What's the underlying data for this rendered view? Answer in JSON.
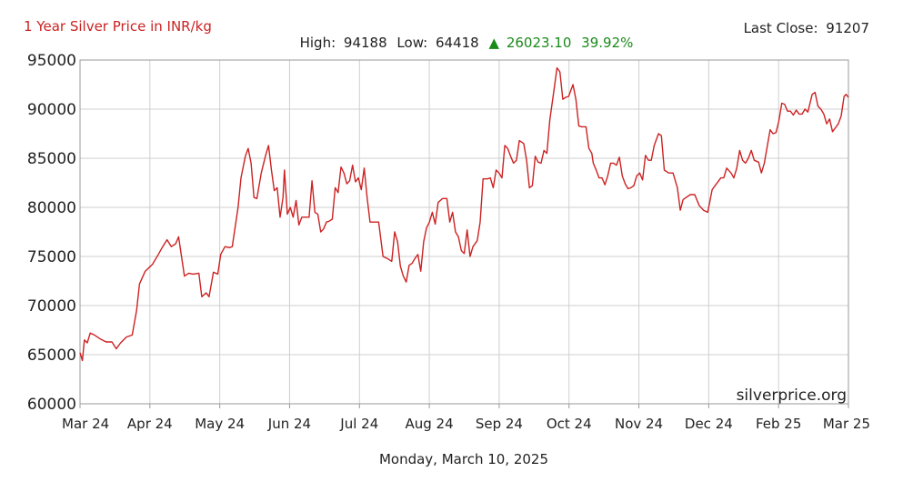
{
  "header": {
    "title": "1 Year Silver Price in INR/kg",
    "last_close_label": "Last Close:",
    "last_close_value": "91207",
    "high_label": "High:",
    "high_value": "94188",
    "low_label": "Low:",
    "low_value": "64418",
    "change_arrow": "▲",
    "change_value": "26023.10",
    "change_percent": "39.92%"
  },
  "footer": {
    "date": "Monday, March 10, 2025",
    "watermark": "silverprice.org"
  },
  "colors": {
    "series": "#cc2222",
    "positive": "#1a8a1a"
  },
  "chart_data": {
    "type": "line",
    "title": "1 Year Silver Price in INR/kg",
    "xlabel": "",
    "ylabel": "",
    "ylim": [
      60000,
      95000
    ],
    "yticks": [
      "95000",
      "90000",
      "85000",
      "80000",
      "75000",
      "70000",
      "65000",
      "60000"
    ],
    "xticks": [
      "Mar 24",
      "Apr 24",
      "May 24",
      "Jun 24",
      "Jul 24",
      "Aug 24",
      "Sep 24",
      "Oct 24",
      "Nov 24",
      "Dec 24",
      "Feb 25",
      "Mar 25"
    ],
    "grid": true,
    "series": [
      {
        "points": [
          [
            0.0,
            65200
          ],
          [
            0.08,
            64400
          ],
          [
            0.15,
            66500
          ],
          [
            0.25,
            66200
          ],
          [
            0.35,
            67200
          ],
          [
            0.5,
            67000
          ],
          [
            0.7,
            66600
          ],
          [
            0.9,
            66300
          ],
          [
            1.1,
            66300
          ],
          [
            1.25,
            65600
          ],
          [
            1.4,
            66200
          ],
          [
            1.6,
            66800
          ],
          [
            1.8,
            67000
          ],
          [
            1.95,
            69500
          ],
          [
            2.05,
            72200
          ],
          [
            2.25,
            73500
          ],
          [
            2.5,
            74200
          ],
          [
            2.7,
            75200
          ],
          [
            2.85,
            76000
          ],
          [
            3.0,
            76700
          ],
          [
            3.15,
            76000
          ],
          [
            3.3,
            76300
          ],
          [
            3.4,
            77000
          ],
          [
            3.5,
            75000
          ],
          [
            3.6,
            73000
          ],
          [
            3.75,
            73300
          ],
          [
            3.9,
            73200
          ],
          [
            4.1,
            73300
          ],
          [
            4.2,
            70900
          ],
          [
            4.35,
            71300
          ],
          [
            4.45,
            70900
          ],
          [
            4.6,
            73400
          ],
          [
            4.75,
            73200
          ],
          [
            4.85,
            75200
          ],
          [
            5.0,
            76000
          ],
          [
            5.15,
            75900
          ],
          [
            5.25,
            76000
          ],
          [
            5.35,
            78000
          ],
          [
            5.45,
            80000
          ],
          [
            5.55,
            83000
          ],
          [
            5.7,
            85200
          ],
          [
            5.8,
            86000
          ],
          [
            5.9,
            84500
          ],
          [
            6.0,
            81000
          ],
          [
            6.1,
            80900
          ],
          [
            6.25,
            83500
          ],
          [
            6.4,
            85300
          ],
          [
            6.5,
            86300
          ],
          [
            6.6,
            83800
          ],
          [
            6.7,
            81700
          ],
          [
            6.8,
            82000
          ],
          [
            6.9,
            79000
          ],
          [
            7.0,
            81000
          ],
          [
            7.05,
            83800
          ],
          [
            7.15,
            79300
          ],
          [
            7.25,
            80000
          ],
          [
            7.35,
            79000
          ],
          [
            7.45,
            80700
          ],
          [
            7.55,
            78200
          ],
          [
            7.65,
            79000
          ],
          [
            7.8,
            79000
          ],
          [
            7.9,
            79000
          ],
          [
            8.0,
            82700
          ],
          [
            8.1,
            79500
          ],
          [
            8.2,
            79300
          ],
          [
            8.3,
            77500
          ],
          [
            8.4,
            77800
          ],
          [
            8.5,
            78500
          ],
          [
            8.6,
            78600
          ],
          [
            8.7,
            78800
          ],
          [
            8.8,
            82000
          ],
          [
            8.9,
            81500
          ],
          [
            9.0,
            84100
          ],
          [
            9.1,
            83500
          ],
          [
            9.2,
            82400
          ],
          [
            9.3,
            82700
          ],
          [
            9.4,
            84300
          ],
          [
            9.5,
            82600
          ],
          [
            9.6,
            83000
          ],
          [
            9.7,
            81800
          ],
          [
            9.8,
            84000
          ],
          [
            9.9,
            81000
          ],
          [
            10.0,
            78500
          ],
          [
            10.15,
            78500
          ],
          [
            10.3,
            78500
          ],
          [
            10.45,
            75000
          ],
          [
            10.6,
            74800
          ],
          [
            10.75,
            74500
          ],
          [
            10.85,
            77500
          ],
          [
            10.95,
            76500
          ],
          [
            11.05,
            74000
          ],
          [
            11.15,
            73000
          ],
          [
            11.25,
            72400
          ],
          [
            11.35,
            74100
          ],
          [
            11.45,
            74300
          ],
          [
            11.55,
            74800
          ],
          [
            11.65,
            75200
          ],
          [
            11.75,
            73500
          ],
          [
            11.85,
            76500
          ],
          [
            11.95,
            77900
          ],
          [
            12.05,
            78500
          ],
          [
            12.15,
            79500
          ],
          [
            12.25,
            78300
          ],
          [
            12.35,
            80500
          ],
          [
            12.5,
            80900
          ],
          [
            12.65,
            80900
          ],
          [
            12.75,
            78500
          ],
          [
            12.85,
            79500
          ],
          [
            12.95,
            77500
          ],
          [
            13.05,
            77000
          ],
          [
            13.15,
            75600
          ],
          [
            13.25,
            75300
          ],
          [
            13.35,
            77700
          ],
          [
            13.45,
            75000
          ],
          [
            13.55,
            76000
          ],
          [
            13.7,
            76600
          ],
          [
            13.8,
            78500
          ],
          [
            13.9,
            82900
          ],
          [
            14.05,
            82900
          ],
          [
            14.15,
            83000
          ],
          [
            14.25,
            82000
          ],
          [
            14.35,
            83800
          ],
          [
            14.45,
            83500
          ],
          [
            14.55,
            83000
          ],
          [
            14.65,
            86300
          ],
          [
            14.75,
            86000
          ],
          [
            14.85,
            85200
          ],
          [
            14.95,
            84500
          ],
          [
            15.05,
            84800
          ],
          [
            15.15,
            86800
          ],
          [
            15.3,
            86500
          ],
          [
            15.4,
            84800
          ],
          [
            15.5,
            82000
          ],
          [
            15.6,
            82200
          ],
          [
            15.7,
            85200
          ],
          [
            15.8,
            84600
          ],
          [
            15.9,
            84500
          ],
          [
            16.0,
            85800
          ],
          [
            16.1,
            85500
          ],
          [
            16.2,
            88900
          ],
          [
            16.35,
            92000
          ],
          [
            16.45,
            94200
          ],
          [
            16.55,
            93800
          ],
          [
            16.65,
            91000
          ],
          [
            16.75,
            91200
          ],
          [
            16.85,
            91300
          ],
          [
            17.0,
            92500
          ],
          [
            17.1,
            91000
          ],
          [
            17.2,
            88300
          ],
          [
            17.3,
            88200
          ],
          [
            17.45,
            88200
          ],
          [
            17.55,
            86000
          ],
          [
            17.65,
            85500
          ],
          [
            17.7,
            84500
          ],
          [
            17.8,
            83800
          ],
          [
            17.9,
            83000
          ],
          [
            18.0,
            83000
          ],
          [
            18.1,
            82300
          ],
          [
            18.2,
            83200
          ],
          [
            18.3,
            84500
          ],
          [
            18.4,
            84500
          ],
          [
            18.5,
            84300
          ],
          [
            18.6,
            85100
          ],
          [
            18.7,
            83200
          ],
          [
            18.8,
            82400
          ],
          [
            18.9,
            81900
          ],
          [
            19.0,
            82000
          ],
          [
            19.1,
            82200
          ],
          [
            19.2,
            83200
          ],
          [
            19.3,
            83500
          ],
          [
            19.4,
            82800
          ],
          [
            19.5,
            85300
          ],
          [
            19.6,
            84800
          ],
          [
            19.7,
            84800
          ],
          [
            19.8,
            86300
          ],
          [
            19.95,
            87500
          ],
          [
            20.05,
            87300
          ],
          [
            20.15,
            83800
          ],
          [
            20.3,
            83500
          ],
          [
            20.45,
            83500
          ],
          [
            20.6,
            82000
          ],
          [
            20.7,
            79700
          ],
          [
            20.8,
            80800
          ],
          [
            20.9,
            81000
          ],
          [
            21.05,
            81300
          ],
          [
            21.2,
            81300
          ],
          [
            21.35,
            80200
          ],
          [
            21.5,
            79700
          ],
          [
            21.65,
            79500
          ],
          [
            21.8,
            81800
          ],
          [
            21.9,
            82200
          ],
          [
            22.0,
            82600
          ],
          [
            22.1,
            83000
          ],
          [
            22.2,
            83000
          ],
          [
            22.3,
            84000
          ],
          [
            22.45,
            83500
          ],
          [
            22.55,
            83000
          ],
          [
            22.65,
            84000
          ],
          [
            22.75,
            85800
          ],
          [
            22.85,
            84800
          ],
          [
            22.95,
            84500
          ],
          [
            23.05,
            85000
          ],
          [
            23.15,
            85800
          ],
          [
            23.25,
            84800
          ],
          [
            23.4,
            84600
          ],
          [
            23.5,
            83500
          ],
          [
            23.6,
            84500
          ],
          [
            23.7,
            86200
          ],
          [
            23.8,
            87900
          ],
          [
            23.9,
            87500
          ],
          [
            24.0,
            87600
          ],
          [
            24.1,
            88800
          ],
          [
            24.2,
            90600
          ],
          [
            24.3,
            90500
          ],
          [
            24.4,
            89800
          ],
          [
            24.5,
            89800
          ],
          [
            24.6,
            89400
          ],
          [
            24.7,
            89900
          ],
          [
            24.8,
            89500
          ],
          [
            24.9,
            89500
          ],
          [
            25.0,
            90000
          ],
          [
            25.1,
            89700
          ],
          [
            25.25,
            91500
          ],
          [
            25.35,
            91700
          ],
          [
            25.45,
            90300
          ],
          [
            25.55,
            90000
          ],
          [
            25.65,
            89500
          ],
          [
            25.75,
            88500
          ],
          [
            25.85,
            89000
          ],
          [
            25.95,
            87700
          ],
          [
            26.05,
            88100
          ],
          [
            26.15,
            88500
          ],
          [
            26.25,
            89300
          ],
          [
            26.35,
            91300
          ],
          [
            26.42,
            91500
          ],
          [
            26.5,
            91207
          ]
        ]
      }
    ]
  }
}
